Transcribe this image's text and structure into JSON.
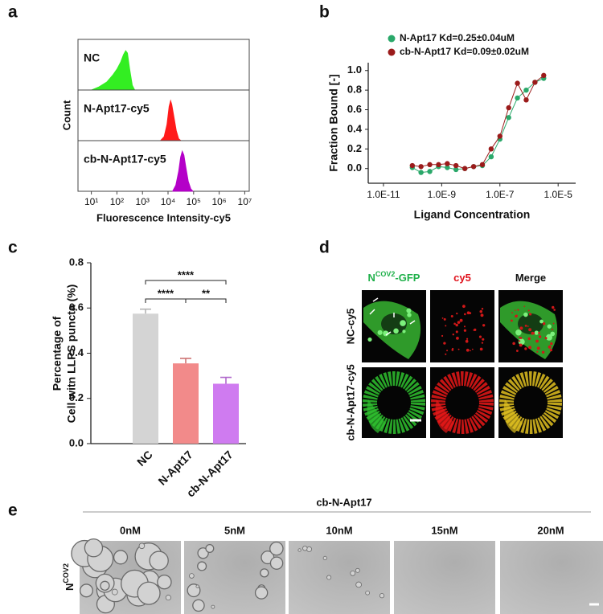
{
  "panel_labels": [
    "a",
    "b",
    "c",
    "d",
    "e"
  ],
  "chart_data": [
    {
      "type": "area",
      "x_label": "Fluorescence Intensity-cy5",
      "y_label": "Count",
      "xscale": "log",
      "xlim": [
        3,
        15000000
      ],
      "xticks": [
        {
          "value": 10,
          "label": "10¹"
        },
        {
          "value": 100,
          "label": "10²"
        },
        {
          "value": 1000,
          "label": "10³"
        },
        {
          "value": 10000,
          "label": "10⁴"
        },
        {
          "value": 100000,
          "label": "10⁵"
        },
        {
          "value": 1000000,
          "label": "10⁶"
        },
        {
          "value": 10000000,
          "label": "10⁷"
        }
      ],
      "series": [
        {
          "name": "NC",
          "color": "#33ee22",
          "x": [
            10,
            20,
            40,
            70,
            100,
            140,
            180,
            220,
            260,
            320,
            400,
            500
          ],
          "values": [
            0,
            0.08,
            0.2,
            0.38,
            0.52,
            0.7,
            0.88,
            0.98,
            0.92,
            0.5,
            0.12,
            0
          ]
        },
        {
          "name": "N-Apt17-cy5",
          "color": "#ff1a1a",
          "x": [
            5000,
            7000,
            9000,
            11000,
            12600,
            14000,
            17000,
            21000,
            26000,
            32000
          ],
          "values": [
            0,
            0.1,
            0.4,
            0.85,
            1,
            0.9,
            0.6,
            0.25,
            0.05,
            0
          ]
        },
        {
          "name": "cb-N-Apt17-cy5",
          "color": "#b400c8",
          "x": [
            15000,
            20000,
            26000,
            31000,
            36000,
            42000,
            50000,
            62000,
            78000,
            95000
          ],
          "values": [
            0,
            0.15,
            0.5,
            0.85,
            1,
            0.9,
            0.6,
            0.25,
            0.06,
            0
          ]
        }
      ]
    },
    {
      "type": "scatter",
      "x_label": "Ligand Concentration",
      "y_label": "Fraction Bound [-]",
      "xscale": "log",
      "xlim": [
        3e-12,
        4e-05
      ],
      "ylim": [
        -0.15,
        1.08
      ],
      "xticks": [
        {
          "value": 1e-11,
          "label": "1.0E-11"
        },
        {
          "value": 1e-09,
          "label": "1.0E-9"
        },
        {
          "value": 1e-07,
          "label": "1.0E-7"
        },
        {
          "value": 1e-05,
          "label": "1.0E-5"
        }
      ],
      "yticks": [
        {
          "value": 0,
          "label": "0.0"
        },
        0.2,
        0.4,
        0.6,
        0.8,
        {
          "value": 1,
          "label": "1.0"
        }
      ],
      "series": [
        {
          "name": "N-Apt17 Kd=0.25±0.04uM",
          "color": "#2aa86a",
          "x": [
            9.8e-11,
            1.95e-10,
            3.9e-10,
            7.8e-10,
            1.56e-09,
            3.1e-09,
            6.25e-09,
            1.25e-08,
            2.5e-08,
            5e-08,
            1e-07,
            2e-07,
            4e-07,
            8e-07,
            1.6e-06,
            3.2e-06
          ],
          "values": [
            0.01,
            -0.04,
            -0.03,
            0.02,
            0.01,
            -0.01,
            0.0,
            0.02,
            0.03,
            0.12,
            0.3,
            0.52,
            0.72,
            0.8,
            0.88,
            0.92
          ]
        },
        {
          "name": "cb-N-Apt17 Kd=0.09±0.02uM",
          "color": "#9b1b1b",
          "x": [
            9.8e-11,
            1.95e-10,
            3.9e-10,
            7.8e-10,
            1.56e-09,
            3.1e-09,
            6.25e-09,
            1.25e-08,
            2.5e-08,
            5e-08,
            1e-07,
            2e-07,
            4e-07,
            8e-07,
            1.6e-06,
            3.2e-06
          ],
          "values": [
            0.03,
            0.02,
            0.04,
            0.04,
            0.05,
            0.03,
            0.0,
            0.02,
            0.04,
            0.2,
            0.33,
            0.62,
            0.87,
            0.7,
            0.88,
            0.95
          ]
        }
      ]
    },
    {
      "type": "bar",
      "y_label": [
        "Percentage of",
        "Cell witn LLPS puncta  (%)"
      ],
      "categories": [
        "NC",
        "N-Apt17",
        "cb-N-Apt17"
      ],
      "values": [
        0.575,
        0.355,
        0.265
      ],
      "errors": [
        0.02,
        0.022,
        0.028
      ],
      "colors": [
        "#d4d4d4",
        "#f28a8a",
        "#cf7bf0"
      ],
      "ylim": [
        0,
        0.8
      ],
      "yticks": [
        {
          "value": 0,
          "label": "0.0"
        },
        0.2,
        0.4,
        0.6,
        0.8
      ],
      "significance": [
        "****",
        "****",
        "**"
      ]
    }
  ],
  "panel_d": {
    "columns": [
      [
        "N",
        "COV2",
        "-GFP"
      ],
      [
        "cy5"
      ],
      [
        "Merge"
      ]
    ],
    "rows": [
      "NC-cy5",
      "cb-N-Apt17-cy5"
    ]
  },
  "panel_e": {
    "title": "cb-N-Apt17",
    "columns": [
      "0nM",
      "5nM",
      "10nM",
      "15nM",
      "20nM"
    ],
    "row_label": [
      "N",
      "COV2"
    ]
  }
}
